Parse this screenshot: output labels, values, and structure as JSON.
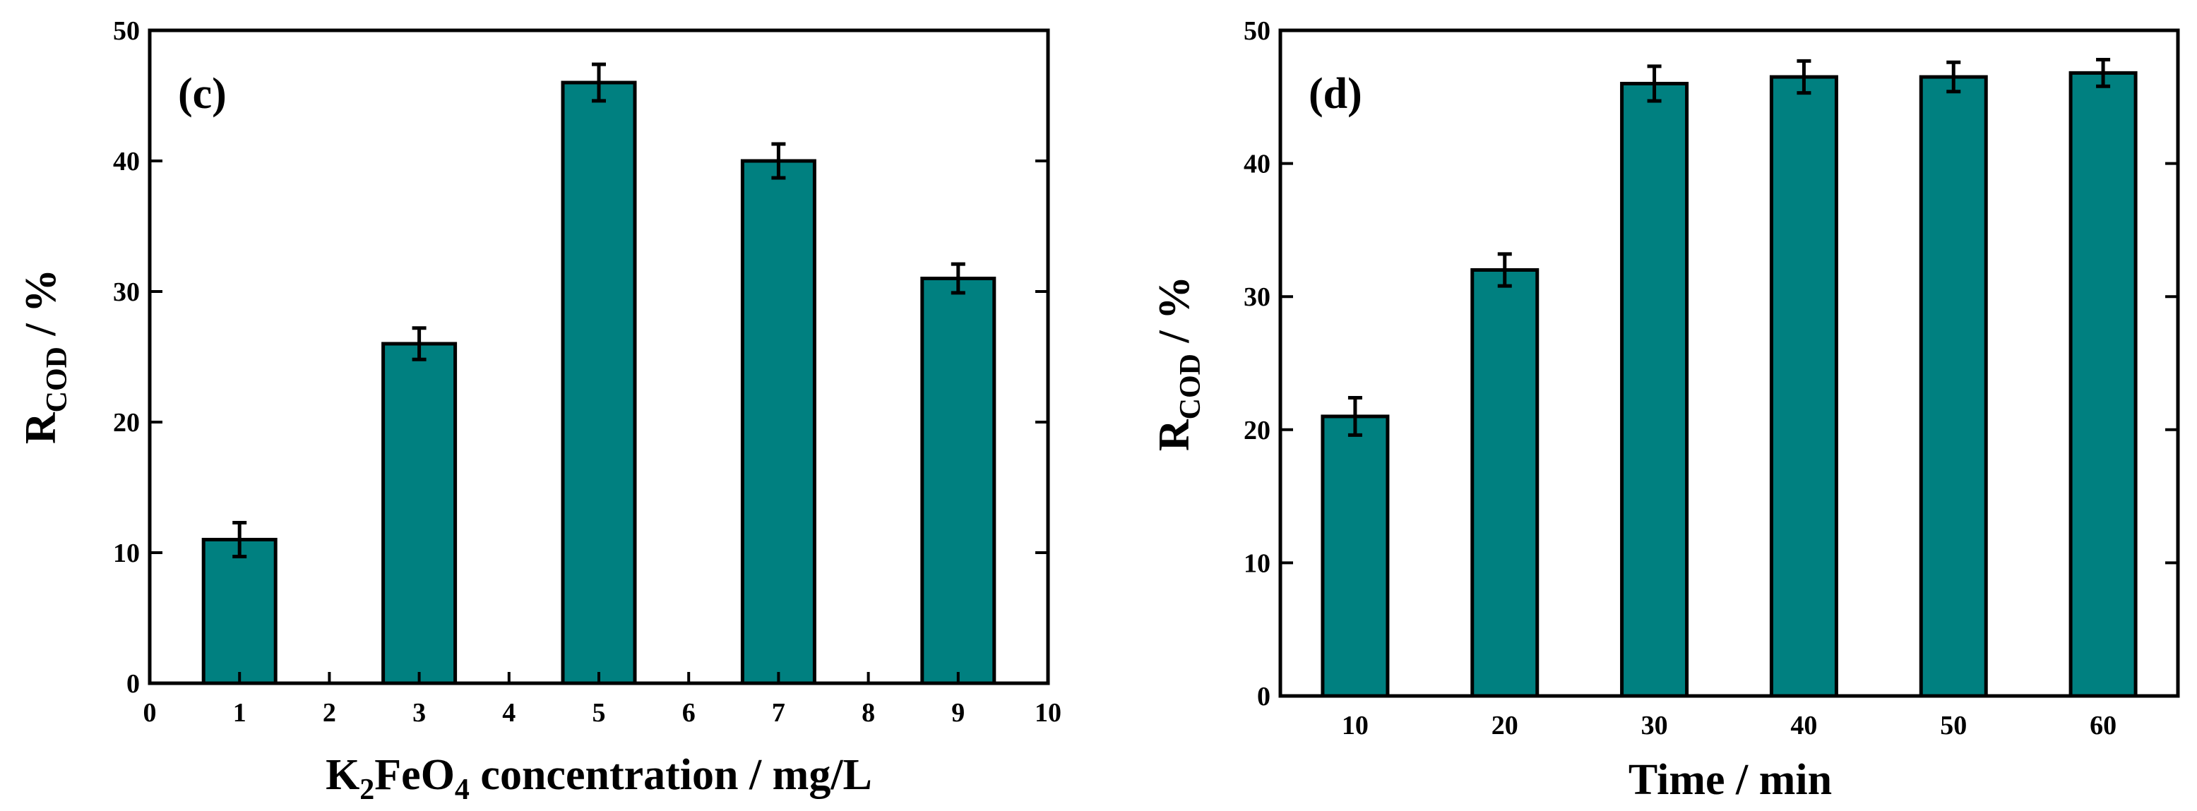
{
  "colors": {
    "bar_fill": "#008080",
    "bar_stroke": "#000000",
    "axis": "#000000"
  },
  "chart_data": [
    {
      "type": "bar",
      "panel_label": "(c)",
      "title": "",
      "x": [
        1,
        3,
        5,
        7,
        9
      ],
      "values": [
        11,
        26,
        46,
        40,
        31
      ],
      "errors": [
        1.3,
        1.2,
        1.4,
        1.3,
        1.1
      ],
      "xlim": [
        0,
        10
      ],
      "xticks": [
        "0",
        "1",
        "2",
        "3",
        "4",
        "5",
        "6",
        "7",
        "8",
        "9",
        "10"
      ],
      "ylim": [
        0,
        50
      ],
      "yticks": [
        "0",
        "10",
        "20",
        "30",
        "40",
        "50"
      ],
      "xlabel": {
        "pre": "K",
        "sub1": "2",
        "mid": "FeO",
        "sub2": "4",
        "post": " concentration / mg/L"
      },
      "ylabel": {
        "main": "R",
        "sub": "COD",
        "post": " / %"
      },
      "grid": false
    },
    {
      "type": "bar",
      "panel_label": "(d)",
      "title": "",
      "categories": [
        "10",
        "20",
        "30",
        "40",
        "50",
        "60"
      ],
      "values": [
        21,
        32,
        46,
        46.5,
        46.5,
        46.8
      ],
      "errors": [
        1.4,
        1.2,
        1.3,
        1.2,
        1.1,
        1.0
      ],
      "ylim": [
        0,
        50
      ],
      "yticks": [
        "0",
        "10",
        "20",
        "30",
        "40",
        "50"
      ],
      "xlabel": {
        "text": "Time / min"
      },
      "ylabel": {
        "main": "R",
        "sub": "COD",
        "post": " / %"
      },
      "grid": false
    }
  ]
}
